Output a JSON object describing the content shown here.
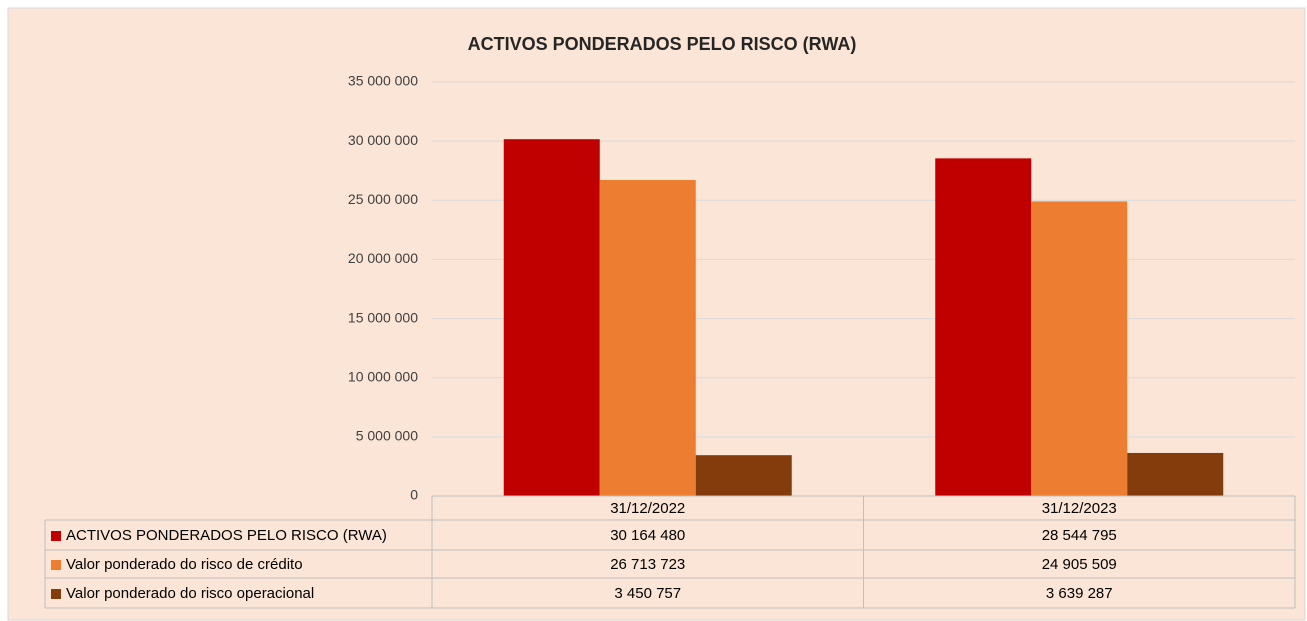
{
  "chart_data": {
    "type": "bar",
    "title": "ACTIVOS PONDERADOS PELO RISCO (RWA)",
    "categories": [
      "31/12/2022",
      "31/12/2023"
    ],
    "series": [
      {
        "name": "ACTIVOS PONDERADOS PELO RISCO (RWA)",
        "color": "#c00000",
        "values": [
          30164480,
          28544795
        ],
        "value_labels": [
          "30 164 480",
          "28 544 795"
        ]
      },
      {
        "name": "Valor ponderado do risco de crédito",
        "color": "#ed7d31",
        "values": [
          26713723,
          24905509
        ],
        "value_labels": [
          "26 713 723",
          "24 905 509"
        ]
      },
      {
        "name": "Valor ponderado do risco operacional",
        "color": "#843c0c",
        "values": [
          3450757,
          3639287
        ],
        "value_labels": [
          "3 450 757",
          "3 639 287"
        ]
      }
    ],
    "ylim": [
      0,
      35000000
    ],
    "yticks": [
      0,
      {
        "value": 5000000,
        "label": "5 000 000"
      },
      {
        "value": 10000000,
        "label": "10 000 000"
      },
      {
        "value": 15000000,
        "label": "15 000 000"
      },
      {
        "value": 20000000,
        "label": "20 000 000"
      },
      {
        "value": 25000000,
        "label": "25 000 000"
      },
      {
        "value": 30000000,
        "label": "30 000 000"
      },
      {
        "value": 35000000,
        "label": "35 000 000"
      }
    ],
    "grid": true
  }
}
